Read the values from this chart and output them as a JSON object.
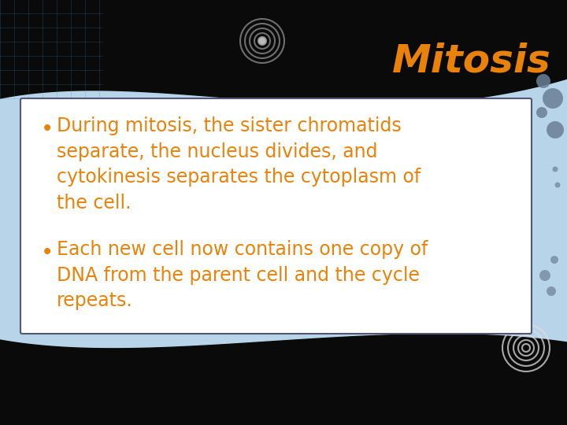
{
  "title": "Mitosis",
  "title_color": "#E8820A",
  "title_fontsize": 36,
  "bullet1": "During mitosis, the sister chromatids\nseparate, the nucleus divides, and\ncytokinesis separates the cytoplasm of\nthe cell.",
  "bullet2": "Each new cell now contains one copy of\nDNA from the parent cell and the cycle\nrepeats.",
  "text_color": "#E8820A",
  "text_fontsize": 17,
  "slide_bg": "#B8D4E8",
  "dot_color": "#6A7F96"
}
